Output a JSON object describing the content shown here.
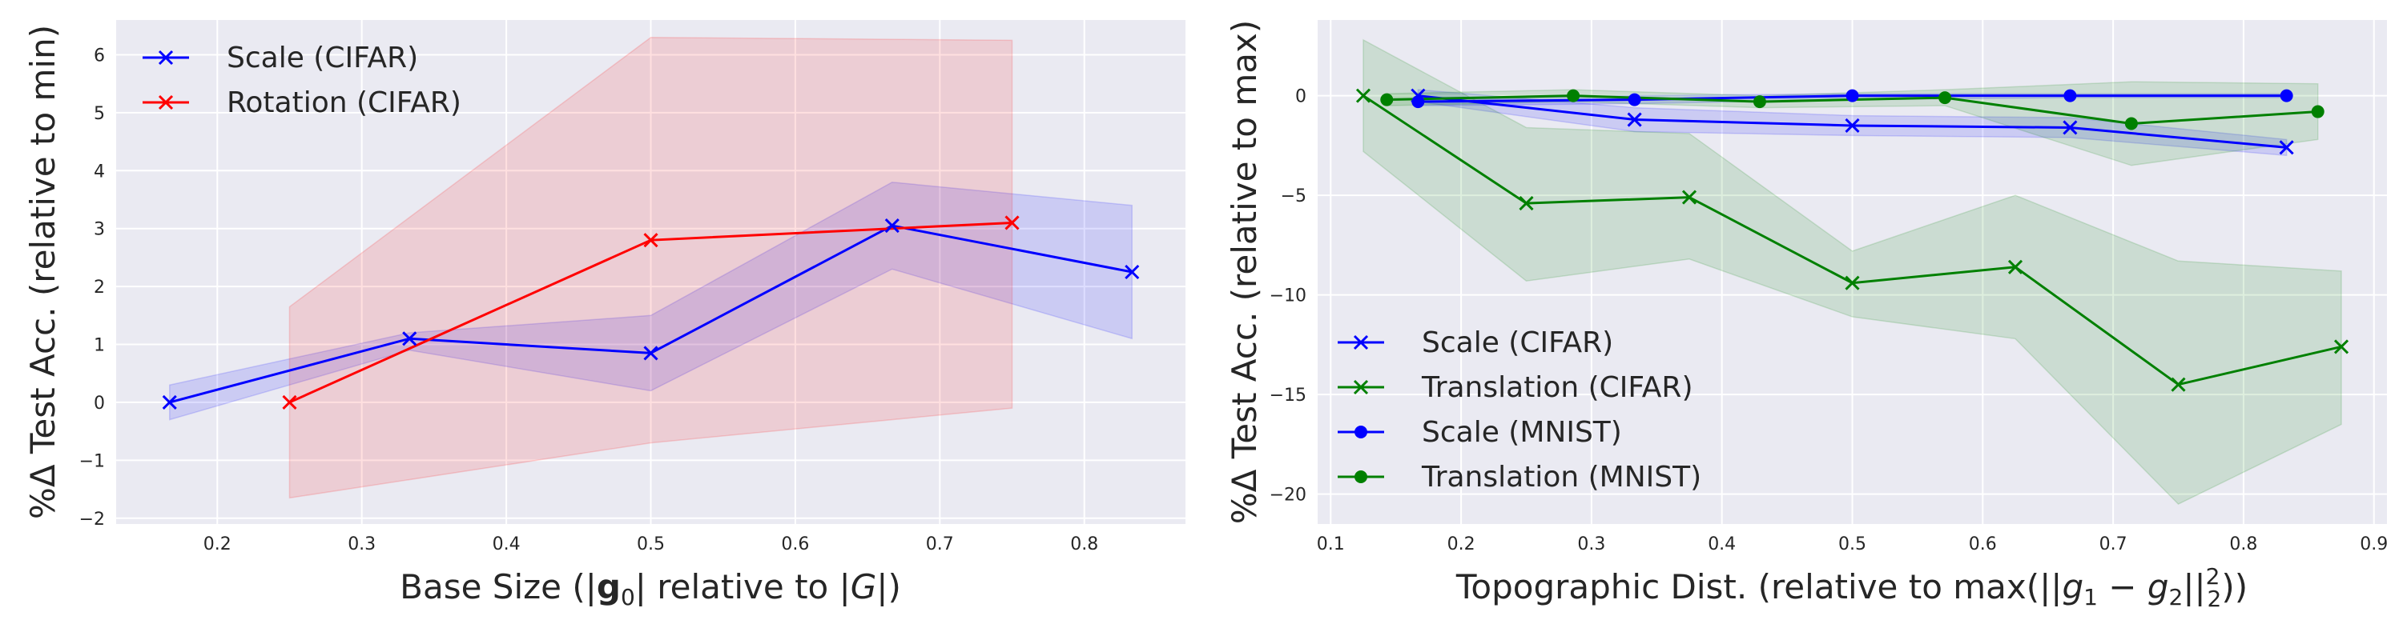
{
  "chart_data": [
    {
      "type": "line",
      "xlabel_main": "Base Size (|",
      "xlabel_bold": "g",
      "xlabel_sub": "0",
      "xlabel_mid": "| relative to |",
      "xlabel_italic": "G",
      "xlabel_end": "|)",
      "ylabel": "%Δ Test Acc. (relative to min)",
      "xlim": [
        0.13,
        0.87
      ],
      "ylim": [
        -2.1,
        6.6
      ],
      "xticks": [
        0.2,
        0.3,
        0.4,
        0.5,
        0.6,
        0.7,
        0.8
      ],
      "xtick_labels": [
        "0.2",
        "0.3",
        "0.4",
        "0.5",
        "0.6",
        "0.7",
        "0.8"
      ],
      "yticks": [
        -2,
        -1,
        0,
        1,
        2,
        3,
        4,
        5,
        6
      ],
      "ytick_labels": [
        "−2",
        "−1",
        "0",
        "1",
        "2",
        "3",
        "4",
        "5",
        "6"
      ],
      "grid": true,
      "legend_position": "top-left",
      "series": [
        {
          "name": "Scale (CIFAR)",
          "color": "#0000ff",
          "marker": "x",
          "x": [
            0.167,
            0.333,
            0.5,
            0.667,
            0.833
          ],
          "y": [
            0.0,
            1.1,
            0.85,
            3.05,
            2.25
          ],
          "lower": [
            -0.3,
            0.9,
            0.2,
            2.3,
            1.1
          ],
          "upper": [
            0.3,
            1.2,
            1.5,
            3.8,
            3.4
          ]
        },
        {
          "name": "Rotation (CIFAR)",
          "color": "#ff0000",
          "marker": "x",
          "x": [
            0.25,
            0.5,
            0.75
          ],
          "y": [
            0.0,
            2.8,
            3.1
          ],
          "lower": [
            -1.65,
            -0.7,
            -0.1
          ],
          "upper": [
            1.65,
            6.3,
            6.25
          ]
        }
      ]
    },
    {
      "type": "line",
      "xlabel_main": "Topographic Dist. (relative to max(||",
      "xlabel_g1": "g",
      "xlabel_sub1": "1",
      "xlabel_minus": " − ",
      "xlabel_g2": "g",
      "xlabel_sub2": "2",
      "xlabel_norm": "||",
      "xlabel_sup": "2",
      "xlabel_sub3": "2",
      "xlabel_end": "))",
      "ylabel": "%Δ Test Acc. (relative to max)",
      "xlim": [
        0.09,
        0.91
      ],
      "ylim": [
        -21.5,
        3.8
      ],
      "xticks": [
        0.1,
        0.2,
        0.3,
        0.4,
        0.5,
        0.6,
        0.7,
        0.8,
        0.9
      ],
      "xtick_labels": [
        "0.1",
        "0.2",
        "0.3",
        "0.4",
        "0.5",
        "0.6",
        "0.7",
        "0.8",
        "0.9"
      ],
      "yticks": [
        -20,
        -15,
        -10,
        -5,
        0
      ],
      "ytick_labels": [
        "−20",
        "−15",
        "−10",
        "−5",
        "0"
      ],
      "grid": true,
      "legend_position": "bottom-left",
      "series": [
        {
          "name": "Scale (CIFAR)",
          "color": "#0000ff",
          "marker": "x",
          "x": [
            0.167,
            0.333,
            0.5,
            0.667,
            0.833
          ],
          "y": [
            0.0,
            -1.2,
            -1.5,
            -1.6,
            -2.6
          ],
          "lower": [
            -0.3,
            -1.8,
            -2.0,
            -2.1,
            -3.0
          ],
          "upper": [
            0.3,
            -0.6,
            -1.0,
            -1.1,
            -2.2
          ]
        },
        {
          "name": "Translation (CIFAR)",
          "color": "#008000",
          "marker": "x",
          "x": [
            0.125,
            0.25,
            0.375,
            0.5,
            0.625,
            0.75,
            0.875
          ],
          "y": [
            0.0,
            -5.4,
            -5.1,
            -9.4,
            -8.6,
            -14.5,
            -12.6
          ],
          "lower": [
            -2.8,
            -9.3,
            -8.2,
            -11.1,
            -12.2,
            -20.5,
            -16.5
          ],
          "upper": [
            2.8,
            -1.6,
            -1.9,
            -7.8,
            -5.0,
            -8.3,
            -8.8
          ]
        },
        {
          "name": "Scale (MNIST)",
          "color": "#0000ff",
          "marker": "o",
          "x": [
            0.167,
            0.333,
            0.5,
            0.667,
            0.833
          ],
          "y": [
            -0.3,
            -0.2,
            0.0,
            0.0,
            0.0
          ],
          "lower": [
            -0.5,
            -0.4,
            -0.2,
            -0.1,
            -0.1
          ],
          "upper": [
            -0.1,
            0.0,
            0.1,
            0.1,
            0.1
          ]
        },
        {
          "name": "Translation (MNIST)",
          "color": "#008000",
          "marker": "o",
          "x": [
            0.143,
            0.286,
            0.429,
            0.571,
            0.714,
            0.857
          ],
          "y": [
            -0.2,
            0.0,
            -0.3,
            -0.1,
            -1.4,
            -0.8
          ],
          "lower": [
            -0.5,
            -0.3,
            -0.6,
            -0.5,
            -3.5,
            -2.2
          ],
          "upper": [
            0.1,
            0.3,
            0.0,
            0.3,
            0.7,
            0.6
          ]
        }
      ]
    }
  ]
}
